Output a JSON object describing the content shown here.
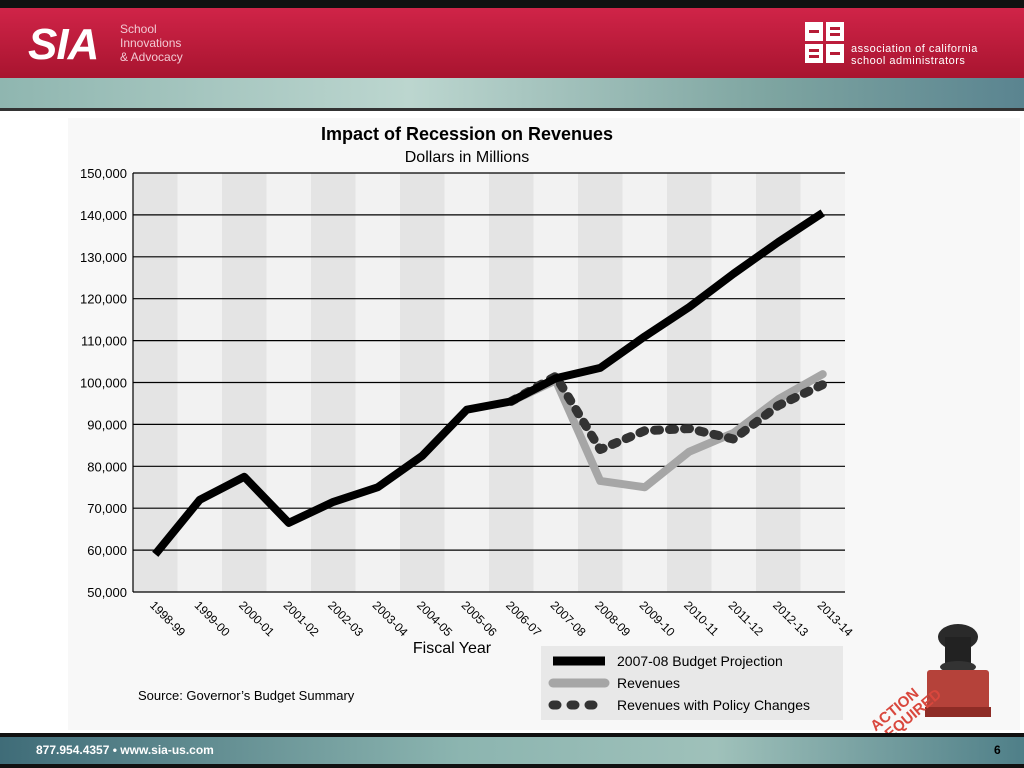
{
  "header": {
    "sia_logo": "SIA",
    "sia_tagline": [
      "School",
      "Innovations",
      "& Advocacy"
    ],
    "acsa_text": [
      "association of california",
      "school administrators"
    ]
  },
  "footer": {
    "contact": "877.954.4357  •  www.sia-us.com",
    "page_number": "6"
  },
  "source_note": "Source: Governor’s Budget Summary",
  "stamp_text": [
    "ACTION",
    "REQUIRED"
  ],
  "chart_data": {
    "type": "line",
    "title": "Impact of Recession on Revenues",
    "subtitle": "Dollars in Millions",
    "xlabel": "Fiscal Year",
    "ylabel": "",
    "ylim": [
      50000,
      150000
    ],
    "yticks": [
      50000,
      60000,
      70000,
      80000,
      90000,
      100000,
      110000,
      120000,
      130000,
      140000,
      150000
    ],
    "ytick_labels": [
      "50,000",
      "60,000",
      "70,000",
      "80,000",
      "90,000",
      "100,000",
      "110,000",
      "120,000",
      "130,000",
      "140,000",
      "150,000"
    ],
    "categories": [
      "1998-99",
      "1999-00",
      "2000-01",
      "2001-02",
      "2002-03",
      "2003-04",
      "2004-05",
      "2005-06",
      "2006-07",
      "2007-08",
      "2008-09",
      "2009-10",
      "2010-11",
      "2011-12",
      "2012-13",
      "2013-14"
    ],
    "series": [
      {
        "name": "2007-08 Budget Projection",
        "color": "#000000",
        "style": "solid",
        "values": [
          59000,
          72000,
          77500,
          66500,
          71500,
          75000,
          82500,
          93500,
          95500,
          101000,
          103500,
          111000,
          118000,
          126000,
          133500,
          140500
        ]
      },
      {
        "name": "Revenues",
        "color": "#a6a6a6",
        "style": "solid",
        "values": [
          null,
          null,
          null,
          null,
          null,
          null,
          null,
          null,
          95500,
          100500,
          76500,
          75000,
          83500,
          88000,
          96000,
          102000
        ]
      },
      {
        "name": "Revenues with Policy Changes",
        "color": "#333333",
        "style": "dotted",
        "values": [
          null,
          null,
          null,
          null,
          null,
          null,
          null,
          null,
          95500,
          101500,
          84000,
          88500,
          89000,
          86500,
          94500,
          99500
        ]
      }
    ],
    "grid": true,
    "legend_position": "bottom-right"
  },
  "colors": {
    "header_red": "#c41e3a",
    "teal": "#8fb6b0",
    "band_even": "#e4e4e4",
    "band_odd": "#f2f2f2"
  }
}
